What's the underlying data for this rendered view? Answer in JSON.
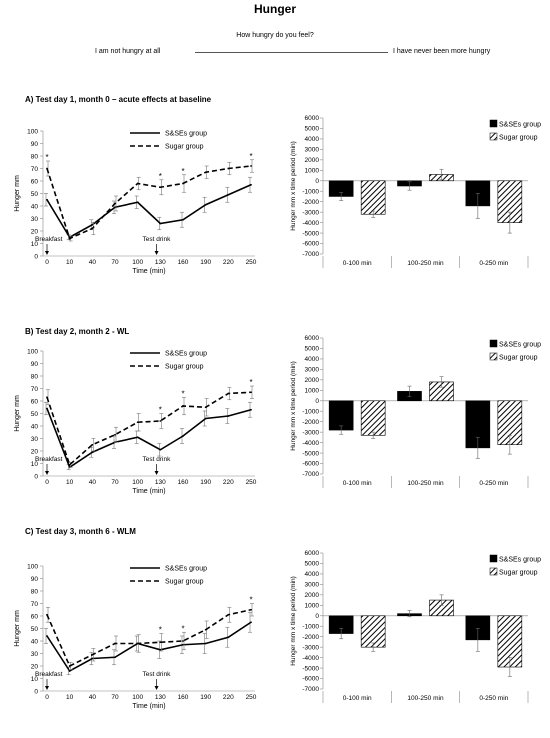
{
  "page": {
    "title": "Hunger",
    "question": "How hungry do you feel?",
    "scale_left": "I am not hungry at all",
    "scale_right": "I have never been more hungry"
  },
  "chart_data": [
    {
      "type": "line",
      "title": "A) Test day 1, month 0 – acute effects at baseline",
      "xlabel": "Time (min)",
      "ylabel": "Hunger mm",
      "x": [
        0,
        10,
        40,
        70,
        100,
        130,
        160,
        190,
        220,
        250
      ],
      "ylim": [
        0,
        100
      ],
      "ytick_step": 10,
      "series": [
        {
          "name": "S&SEs group",
          "style": "solid",
          "values": [
            45,
            15,
            25,
            39,
            43,
            26,
            29,
            41,
            49,
            57
          ],
          "errors": [
            5,
            2,
            4,
            5,
            5,
            5,
            6,
            6,
            6,
            6
          ]
        },
        {
          "name": "Sugar group",
          "style": "dashed",
          "values": [
            70,
            14,
            22,
            42,
            58,
            55,
            58,
            67,
            70,
            72
          ],
          "errors": [
            6,
            2,
            5,
            6,
            5,
            6,
            7,
            5,
            5,
            5
          ]
        }
      ],
      "significant_x": [
        0,
        130,
        160,
        250
      ],
      "annotations": {
        "breakfast": "Breakfast",
        "test_drink": "Test drink",
        "breakfast_x": 0,
        "test_drink_x": 125
      },
      "legend_position": "top-right"
    },
    {
      "type": "bar",
      "categories": [
        "0-100 min",
        "100-250 min",
        "0-250 min"
      ],
      "ylabel": "Hunger mm x time period (min)",
      "ylim": [
        -7000,
        6000
      ],
      "ytick_step": 1000,
      "series": [
        {
          "name": "S&SEs group",
          "fill": "black",
          "values": [
            -1500,
            -500,
            -2400
          ],
          "errors": [
            400,
            400,
            1200
          ]
        },
        {
          "name": "Sugar group",
          "fill": "hatched",
          "values": [
            -3200,
            600,
            -4000
          ],
          "errors": [
            300,
            500,
            1000
          ]
        }
      ],
      "legend_position": "top-right"
    },
    {
      "type": "line",
      "title": "B) Test day 2, month 2 - WL",
      "xlabel": "Time (min)",
      "ylabel": "Hunger mm",
      "x": [
        0,
        10,
        40,
        70,
        100,
        130,
        160,
        190,
        220,
        250
      ],
      "ylim": [
        0,
        100
      ],
      "ytick_step": 10,
      "series": [
        {
          "name": "S&SEs group",
          "style": "solid",
          "values": [
            54,
            7,
            19,
            27,
            31,
            21,
            32,
            46,
            48,
            53
          ],
          "errors": [
            5,
            2,
            4,
            5,
            5,
            5,
            6,
            6,
            6,
            6
          ]
        },
        {
          "name": "Sugar group",
          "style": "dashed",
          "values": [
            63,
            9,
            25,
            33,
            43,
            44,
            56,
            55,
            66,
            67
          ],
          "errors": [
            6,
            2,
            5,
            6,
            7,
            6,
            7,
            7,
            5,
            5
          ]
        }
      ],
      "significant_x": [
        130,
        160,
        250
      ],
      "annotations": {
        "breakfast": "Breakfast",
        "test_drink": "Test drink",
        "breakfast_x": 0,
        "test_drink_x": 125
      },
      "legend_position": "top-right"
    },
    {
      "type": "bar",
      "categories": [
        "0-100 min",
        "100-250 min",
        "0-250 min"
      ],
      "ylabel": "Hunger mm x time period (min)",
      "ylim": [
        -7000,
        6000
      ],
      "ytick_step": 1000,
      "series": [
        {
          "name": "S&SEs group",
          "fill": "black",
          "values": [
            -2800,
            900,
            -4500
          ],
          "errors": [
            400,
            500,
            1000
          ]
        },
        {
          "name": "Sugar group",
          "fill": "hatched",
          "values": [
            -3300,
            1800,
            -4200
          ],
          "errors": [
            300,
            500,
            900
          ]
        }
      ],
      "legend_position": "top-right"
    },
    {
      "type": "line",
      "title": "C) Test day 3, month 6 - WLM",
      "xlabel": "Time (min)",
      "ylabel": "Hunger mm",
      "x": [
        0,
        10,
        40,
        70,
        100,
        130,
        160,
        190,
        220,
        250
      ],
      "ylim": [
        0,
        100
      ],
      "ytick_step": 10,
      "series": [
        {
          "name": "S&SEs group",
          "style": "solid",
          "values": [
            44,
            16,
            26,
            27,
            38,
            33,
            37,
            38,
            43,
            55
          ],
          "errors": [
            6,
            3,
            5,
            6,
            6,
            7,
            7,
            8,
            8,
            8
          ]
        },
        {
          "name": "Sugar group",
          "style": "dashed",
          "values": [
            61,
            20,
            29,
            38,
            38,
            39,
            40,
            49,
            61,
            65
          ],
          "errors": [
            6,
            3,
            5,
            6,
            7,
            7,
            7,
            7,
            6,
            5
          ]
        }
      ],
      "significant_x": [
        130,
        160,
        250
      ],
      "annotations": {
        "breakfast": "Breakfast",
        "test_drink": "Test drink",
        "breakfast_x": 0,
        "test_drink_x": 125
      },
      "legend_position": "top-right"
    },
    {
      "type": "bar",
      "categories": [
        "0-100 min",
        "100-250 min",
        "0-250 min"
      ],
      "ylabel": "Hunger mm x time period (min)",
      "ylim": [
        -7000,
        6000
      ],
      "ytick_step": 1000,
      "series": [
        {
          "name": "S&SEs group",
          "fill": "black",
          "values": [
            -1700,
            200,
            -2300
          ],
          "errors": [
            500,
            300,
            1100
          ]
        },
        {
          "name": "Sugar group",
          "fill": "hatched",
          "values": [
            -3000,
            1500,
            -4900
          ],
          "errors": [
            400,
            500,
            900
          ]
        }
      ],
      "legend_position": "top-right"
    }
  ]
}
